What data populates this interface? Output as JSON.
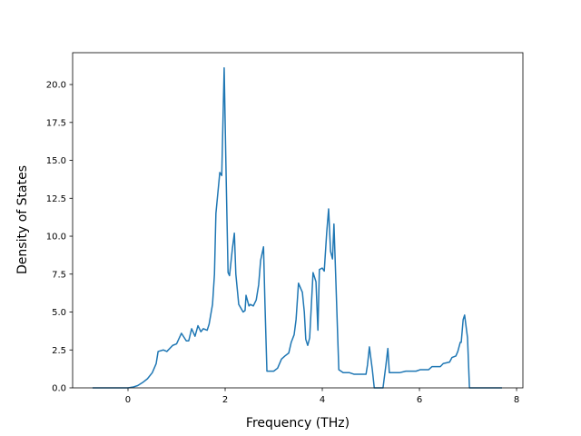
{
  "chart_data": {
    "type": "line",
    "x_label": "Frequency (THz)",
    "y_label": "Density of States",
    "xlim": [
      -1.14,
      8.13
    ],
    "ylim": [
      0,
      22.1
    ],
    "xticks": [
      0,
      2,
      4,
      6,
      8
    ],
    "yticks": [
      {
        "value": 0,
        "label": "0.0"
      },
      2.5,
      {
        "value": 5,
        "label": "5.0"
      },
      7.5,
      {
        "value": 10,
        "label": "10.0"
      },
      12.5,
      {
        "value": 15,
        "label": "15.0"
      },
      17.5,
      {
        "value": 20,
        "label": "20.0"
      }
    ],
    "grid": false,
    "series": [
      {
        "color": "#1f77b4",
        "x": [
          -0.73,
          0,
          0.1,
          0.2,
          0.3,
          0.4,
          0.5,
          0.58,
          0.62,
          0.73,
          0.8,
          0.92,
          1.0,
          1.1,
          1.2,
          1.25,
          1.31,
          1.38,
          1.44,
          1.5,
          1.55,
          1.63,
          1.67,
          1.74,
          1.78,
          1.81,
          1.89,
          1.93,
          1.98,
          2.02,
          2.06,
          2.09,
          2.15,
          2.19,
          2.22,
          2.28,
          2.37,
          2.41,
          2.43,
          2.49,
          2.52,
          2.58,
          2.64,
          2.69,
          2.73,
          2.79,
          2.82,
          2.86,
          3.0,
          3.08,
          3.16,
          3.23,
          3.31,
          3.36,
          3.42,
          3.46,
          3.51,
          3.59,
          3.63,
          3.66,
          3.7,
          3.74,
          3.81,
          3.87,
          3.91,
          3.94,
          4.0,
          4.04,
          4.09,
          4.13,
          4.17,
          4.21,
          4.24,
          4.28,
          4.34,
          4.43,
          4.56,
          4.65,
          4.9,
          4.93,
          4.97,
          5.03,
          5.07,
          5.25,
          5.31,
          5.35,
          5.38,
          5.59,
          5.72,
          5.93,
          6.02,
          6.19,
          6.26,
          6.43,
          6.49,
          6.62,
          6.67,
          6.75,
          6.79,
          6.84,
          6.86,
          6.9,
          6.93,
          6.99,
          7.03,
          7.7
        ],
        "values": [
          0,
          0,
          0.05,
          0.15,
          0.35,
          0.6,
          1.0,
          1.6,
          2.4,
          2.5,
          2.4,
          2.8,
          2.9,
          3.6,
          3.1,
          3.1,
          3.9,
          3.4,
          4.1,
          3.7,
          3.9,
          3.8,
          4.2,
          5.5,
          7.5,
          11.5,
          14.2,
          14.0,
          21.1,
          14.0,
          7.6,
          7.4,
          9.2,
          10.2,
          7.5,
          5.5,
          5.0,
          5.1,
          6.1,
          5.4,
          5.5,
          5.4,
          5.8,
          6.8,
          8.4,
          9.3,
          5.5,
          1.1,
          1.1,
          1.3,
          1.9,
          2.1,
          2.3,
          3.0,
          3.5,
          4.5,
          6.9,
          6.3,
          5.0,
          3.2,
          2.8,
          3.3,
          7.6,
          7.0,
          3.8,
          7.8,
          7.9,
          7.7,
          10.2,
          11.8,
          9.0,
          8.5,
          10.8,
          7.0,
          1.2,
          1.0,
          1.0,
          0.9,
          0.9,
          1.5,
          2.7,
          1.2,
          0,
          0,
          1.5,
          2.6,
          1.0,
          1.0,
          1.1,
          1.1,
          1.2,
          1.2,
          1.4,
          1.4,
          1.6,
          1.7,
          2.0,
          2.1,
          2.4,
          3.0,
          3.0,
          4.5,
          4.8,
          3.3,
          0,
          0
        ]
      }
    ]
  }
}
